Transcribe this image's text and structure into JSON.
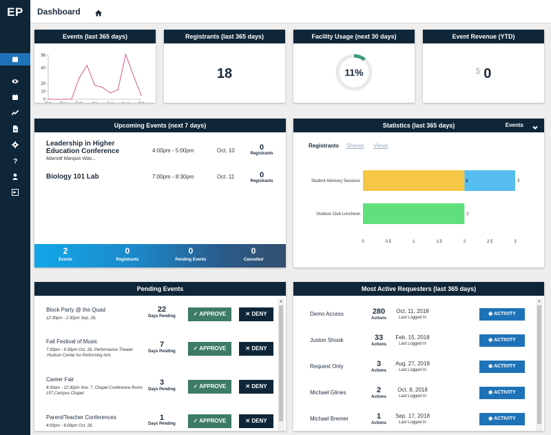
{
  "app": {
    "logo": "EP"
  },
  "topbar": {
    "title": "Dashboard"
  },
  "cards": {
    "events": {
      "title": "Events (last 365 days)"
    },
    "registrants": {
      "title": "Registrants (last 365 days)",
      "value": "18"
    },
    "facility": {
      "title": "Facility Usage (next 30 days)",
      "value": "11%",
      "percent": 11
    },
    "revenue": {
      "title": "Event Revenue (YTD)",
      "currency": "$",
      "value": "0"
    }
  },
  "chart_data": {
    "type": "line",
    "categories": [
      "Oct",
      "Nov",
      "Dec",
      "Jan",
      "Feb",
      "Mar",
      "Apr",
      "May",
      "Jun",
      "Jul",
      "Aug",
      "Sep",
      "Oct"
    ],
    "x_tick_labels": [
      "Oct",
      "Dec",
      "Feb",
      "Apr",
      "Jun",
      "Aug",
      "Oct"
    ],
    "values": [
      0,
      0,
      0,
      0,
      27,
      43,
      18,
      15,
      8,
      12,
      57,
      30,
      5
    ],
    "ylim": [
      0,
      56
    ],
    "y_ticks": [
      0,
      10,
      20,
      40,
      56
    ],
    "color": "#d6558f"
  },
  "upcoming": {
    "title": "Upcoming Events (next 7 days)",
    "events": [
      {
        "name": "Leadership in Higher Education Conference",
        "location": "Marriott Marquis Was...",
        "time": "4:00pm - 5:00pm",
        "date": "Oct. 10",
        "count": "0",
        "count_label": "Registrants"
      },
      {
        "name": "Biology 101 Lab",
        "location": "",
        "time": "7:00pm - 8:30pm",
        "date": "Oct. 11",
        "count": "0",
        "count_label": "Registrants"
      }
    ],
    "summary": [
      {
        "value": "2",
        "label": "Events"
      },
      {
        "value": "0",
        "label": "Registrants"
      },
      {
        "value": "0",
        "label": "Pending Events"
      },
      {
        "value": "0",
        "label": "Cancelled"
      }
    ]
  },
  "statistics": {
    "title": "Statistics (last 365 days)",
    "dropdown": "Events",
    "tabs": [
      "Registrants",
      "Shares",
      "Views"
    ],
    "bar_chart": {
      "type": "bar",
      "categories": [
        "Student Advisory Sessions",
        "Outdoor Club Luncheon"
      ],
      "series": [
        {
          "values": [
            2,
            2
          ],
          "colors": [
            "#f6c744",
            "#5fe07c"
          ]
        },
        {
          "values": [
            1,
            0
          ],
          "color": "#56bdf1"
        }
      ],
      "totals": [
        "3",
        "2"
      ],
      "segment_labels": [
        "2",
        ""
      ],
      "xlim": [
        0,
        3
      ],
      "x_ticks": [
        "0",
        "0.5",
        "1",
        "1.5",
        "2",
        "2.5",
        "3"
      ]
    }
  },
  "pending": {
    "title": "Pending Events",
    "approve_label": "APPROVE",
    "deny_label": "DENY",
    "days_label": "Days Pending",
    "items": [
      {
        "name": "Block Party @ the Quad",
        "detail": "12:30pm - 2:30pm Sep. 28,",
        "days": "22"
      },
      {
        "name": "Fall Festival of Music",
        "detail": "7:30pm - 9:30pm Oct. 26, Performance Theater ,Hudson Center for Performing Arts",
        "days": "7"
      },
      {
        "name": "Career Fair",
        "detail": "8:30am - 12:30pm Nov. 7, Chapel Conference Room 157,Campus Chapel",
        "days": "3"
      },
      {
        "name": "Parent/Teacher Conferences",
        "detail": "4:00pm - 6:00pm Oct. 26,",
        "days": "1"
      }
    ]
  },
  "requesters": {
    "title": "Most Active Requesters (last 365 days)",
    "actions_label": "Actions",
    "last_logged_label": "Last Logged In",
    "activity_label": "ACTIVITY",
    "items": [
      {
        "name": "Demo Access",
        "actions": "280",
        "date": "Oct. 11, 2018"
      },
      {
        "name": "Juston Shook",
        "actions": "33",
        "date": "Feb. 15, 2018"
      },
      {
        "name": "Request Only",
        "actions": "3",
        "date": "Aug. 27, 2018"
      },
      {
        "name": "Michael Glines",
        "actions": "2",
        "date": "Oct. 8, 2018"
      },
      {
        "name": "Michael Bremer",
        "actions": "1",
        "date": "Sep. 17, 2018"
      }
    ]
  }
}
